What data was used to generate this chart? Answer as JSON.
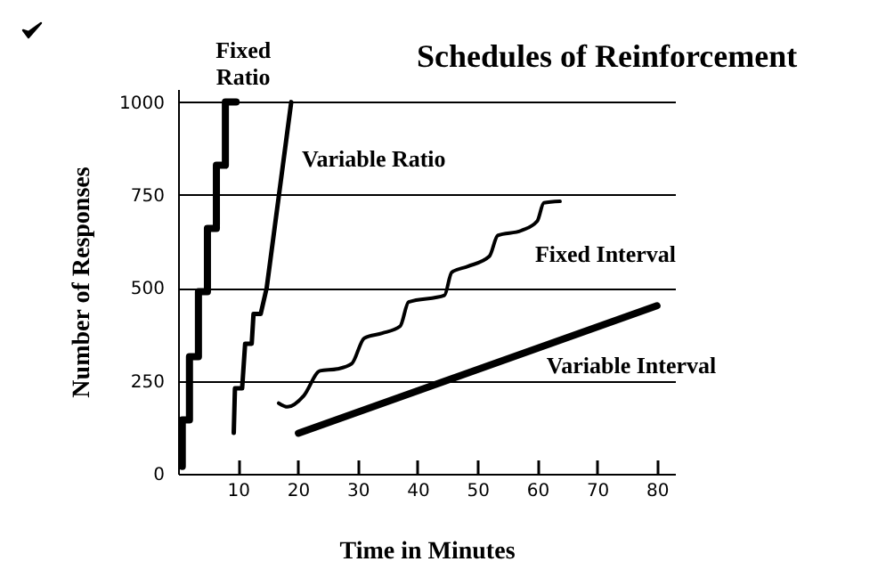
{
  "chart_data": {
    "type": "line",
    "title": "Schedules of Reinforcement",
    "xlabel": "Time in Minutes",
    "ylabel": "Number of Responses",
    "xlim": [
      0,
      83
    ],
    "ylim": [
      0,
      1035
    ],
    "xticks": [
      10,
      20,
      30,
      40,
      50,
      60,
      70,
      80
    ],
    "yticks": [
      0,
      250,
      500,
      750,
      1000
    ],
    "grid": "y",
    "series": [
      {
        "name": "Fixed Ratio",
        "color": "#000000",
        "x": [
          0.7,
          0.7,
          1.9,
          1.9,
          3.4,
          3.4,
          4.9,
          4.9,
          6.4,
          6.4,
          7.9,
          7.9,
          9.7
        ],
        "values": [
          20,
          145,
          145,
          315,
          315,
          490,
          490,
          660,
          660,
          830,
          830,
          1000,
          1000
        ]
      },
      {
        "name": "Variable Ratio",
        "color": "#000000",
        "x": [
          9.3,
          9.5,
          10.7,
          11.2,
          12.3,
          12.6,
          13.8,
          14.8,
          18.9
        ],
        "values": [
          110,
          230,
          230,
          350,
          350,
          430,
          430,
          500,
          1000
        ]
      },
      {
        "name": "Fixed Interval",
        "color": "#000000",
        "x": [
          16.8,
          18.3,
          21,
          23.7,
          26.6,
          29,
          31.1,
          34.1,
          37.1,
          38.5,
          44.5,
          45.7,
          48.4,
          52,
          53.4,
          57.3,
          60,
          61.1,
          63.8
        ],
        "values": [
          190,
          180,
          210,
          277,
          282,
          296,
          365,
          378,
          397,
          462,
          480,
          542,
          558,
          585,
          641,
          654,
          680,
          729,
          733
        ]
      },
      {
        "name": "Variable Interval",
        "color": "#000000",
        "x": [
          20.1,
          80
        ],
        "values": [
          109,
          452
        ]
      }
    ]
  }
}
